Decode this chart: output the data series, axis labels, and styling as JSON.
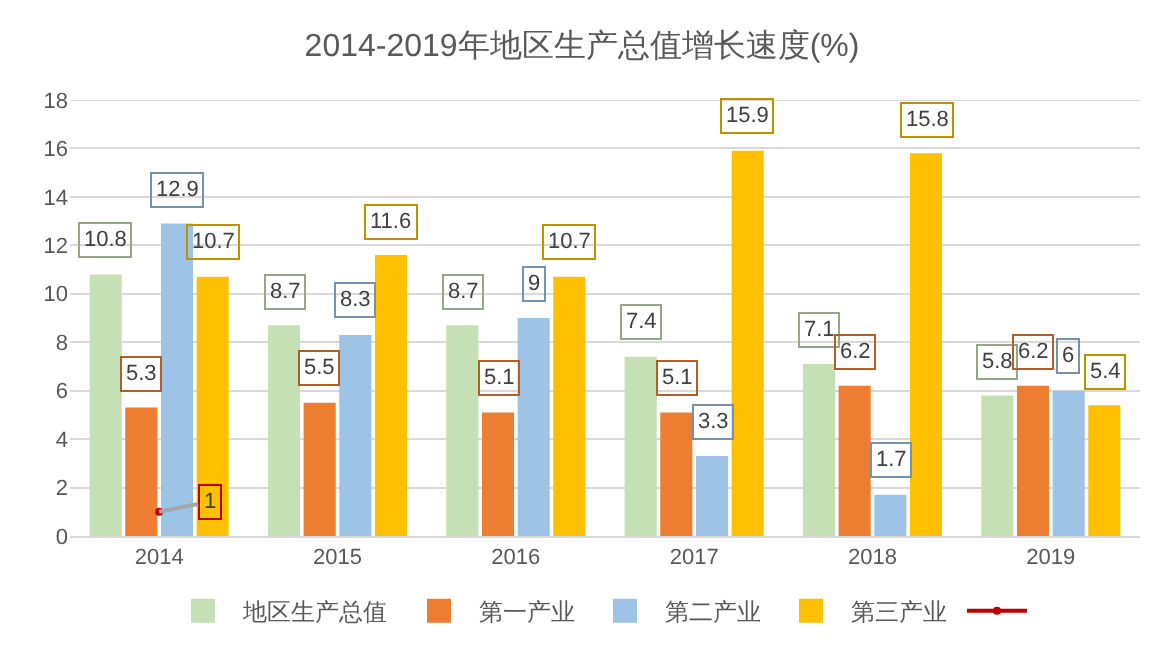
{
  "chart_data": {
    "type": "bar",
    "title": "2014-2019年地区生产总值增长速度(%)",
    "categories": [
      "2014",
      "2015",
      "2016",
      "2017",
      "2018",
      "2019"
    ],
    "series": [
      {
        "name": "地区生产总值",
        "color": "#c5e0b4",
        "values": [
          10.8,
          8.7,
          8.7,
          7.4,
          7.1,
          5.8
        ]
      },
      {
        "name": "第一产业",
        "color": "#ed7d31",
        "values": [
          5.3,
          5.5,
          5.1,
          5.1,
          6.2,
          6.2
        ]
      },
      {
        "name": "第二产业",
        "color": "#9dc3e6",
        "values": [
          12.9,
          8.3,
          9,
          3.3,
          1.7,
          6
        ]
      },
      {
        "name": "第三产业",
        "color": "#ffc000",
        "values": [
          10.7,
          11.6,
          10.7,
          15.9,
          15.8,
          5.4
        ]
      },
      {
        "type": "line",
        "color": "#c00000",
        "marker": "circle",
        "values": [
          1,
          null,
          null,
          null,
          null,
          null
        ]
      }
    ],
    "ylim": [
      0,
      18
    ],
    "yticks": [
      0,
      2,
      4,
      6,
      8,
      10,
      12,
      14,
      16,
      18
    ],
    "grid": "y",
    "legend": "bottom",
    "data_labels": true
  }
}
